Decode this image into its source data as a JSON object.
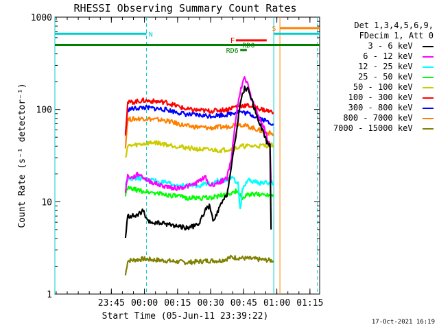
{
  "chart_data": {
    "type": "line",
    "title": "RHESSI Observing Summary Count Rates",
    "xlabel": "Start Time (05-Jun-11 23:39:22)",
    "ylabel": "Count Rate (s⁻¹ detector⁻¹)",
    "y_scale": "log",
    "ylim": [
      1,
      1000
    ],
    "y_ticks": [
      "1",
      "10",
      "100",
      "1000"
    ],
    "xlim_minutes": [
      -20,
      100
    ],
    "x_ticks": [
      {
        "label": "23:45",
        "value": 5.6
      },
      {
        "label": "00:00",
        "value": 20.6
      },
      {
        "label": "00:15",
        "value": 35.6
      },
      {
        "label": "00:30",
        "value": 50.6
      },
      {
        "label": "00:45",
        "value": 65.6
      },
      {
        "label": "01:00",
        "value": 80.6
      },
      {
        "label": "01:15",
        "value": 95.6
      }
    ],
    "legend_header": [
      "Det 1,3,4,5,6,9,",
      "FDecim 1, Att 0"
    ],
    "series": [
      {
        "name": "3 - 6 keV",
        "color": "#000000",
        "points": [
          [
            12,
            4
          ],
          [
            13,
            7
          ],
          [
            17,
            7
          ],
          [
            20,
            8
          ],
          [
            22,
            6
          ],
          [
            30,
            5.8
          ],
          [
            40,
            5.2
          ],
          [
            45,
            5.6
          ],
          [
            48,
            8
          ],
          [
            50,
            9
          ],
          [
            52,
            6
          ],
          [
            54,
            8
          ],
          [
            56,
            10
          ],
          [
            58,
            12
          ],
          [
            60,
            24
          ],
          [
            62,
            50
          ],
          [
            64,
            120
          ],
          [
            66,
            170
          ],
          [
            68,
            160
          ],
          [
            70,
            110
          ],
          [
            72,
            80
          ],
          [
            74,
            60
          ],
          [
            76,
            45
          ],
          [
            77.5,
            40
          ],
          [
            78,
            5
          ]
        ]
      },
      {
        "name": "6 - 12 keV",
        "color": "#ff00ff",
        "points": [
          [
            12,
            13
          ],
          [
            13,
            19
          ],
          [
            15,
            18
          ],
          [
            18,
            20
          ],
          [
            22,
            17
          ],
          [
            28,
            15
          ],
          [
            35,
            14
          ],
          [
            42,
            15
          ],
          [
            46,
            17
          ],
          [
            48,
            19
          ],
          [
            50,
            15
          ],
          [
            54,
            16
          ],
          [
            58,
            18
          ],
          [
            60,
            30
          ],
          [
            62,
            80
          ],
          [
            64,
            160
          ],
          [
            66,
            220
          ],
          [
            67,
            200
          ],
          [
            69,
            130
          ],
          [
            72,
            90
          ],
          [
            75,
            60
          ],
          [
            77.5,
            40
          ],
          [
            78,
            16
          ]
        ]
      },
      {
        "name": "12 - 25 keV",
        "color": "#00ffff",
        "points": [
          [
            12,
            15
          ],
          [
            13,
            18
          ],
          [
            18,
            18
          ],
          [
            25,
            17
          ],
          [
            35,
            15
          ],
          [
            45,
            15
          ],
          [
            55,
            17
          ],
          [
            60,
            18
          ],
          [
            63,
            16
          ],
          [
            64,
            8
          ],
          [
            65,
            14
          ],
          [
            68,
            17
          ],
          [
            72,
            16
          ],
          [
            78,
            16
          ],
          [
            79,
            16
          ]
        ]
      },
      {
        "name": "25 - 50 keV",
        "color": "#00ff00",
        "points": [
          [
            12,
            12
          ],
          [
            13,
            14
          ],
          [
            20,
            13
          ],
          [
            30,
            12
          ],
          [
            40,
            11
          ],
          [
            50,
            11
          ],
          [
            58,
            12
          ],
          [
            62,
            13
          ],
          [
            65,
            11
          ],
          [
            68,
            12
          ],
          [
            75,
            12
          ],
          [
            79,
            12
          ]
        ]
      },
      {
        "name": "50 - 100 keV",
        "color": "#cccc00",
        "points": [
          [
            12,
            30
          ],
          [
            13,
            40
          ],
          [
            25,
            44
          ],
          [
            35,
            40
          ],
          [
            45,
            37
          ],
          [
            55,
            36
          ],
          [
            62,
            38
          ],
          [
            65,
            40
          ],
          [
            70,
            40
          ],
          [
            79,
            41
          ]
        ]
      },
      {
        "name": "100 - 300 keV",
        "color": "#ff0000",
        "points": [
          [
            12,
            55
          ],
          [
            13,
            118
          ],
          [
            20,
            125
          ],
          [
            30,
            120
          ],
          [
            40,
            100
          ],
          [
            50,
            96
          ],
          [
            58,
            100
          ],
          [
            63,
            110
          ],
          [
            68,
            110
          ],
          [
            74,
            100
          ],
          [
            79,
            93
          ]
        ]
      },
      {
        "name": "300 - 800 keV",
        "color": "#0000ff",
        "points": [
          [
            12,
            55
          ],
          [
            13,
            100
          ],
          [
            20,
            105
          ],
          [
            30,
            100
          ],
          [
            40,
            88
          ],
          [
            50,
            85
          ],
          [
            58,
            88
          ],
          [
            63,
            95
          ],
          [
            68,
            90
          ],
          [
            74,
            78
          ],
          [
            79,
            70
          ]
        ]
      },
      {
        "name": "800 - 7000 keV",
        "color": "#ff8000",
        "points": [
          [
            12,
            40
          ],
          [
            13,
            78
          ],
          [
            20,
            80
          ],
          [
            30,
            76
          ],
          [
            40,
            66
          ],
          [
            50,
            63
          ],
          [
            58,
            65
          ],
          [
            63,
            70
          ],
          [
            68,
            65
          ],
          [
            74,
            58
          ],
          [
            79,
            54
          ]
        ]
      },
      {
        "name": "7000 - 15000 keV",
        "color": "#808000",
        "points": [
          [
            12,
            1.6
          ],
          [
            13,
            2.3
          ],
          [
            20,
            2.4
          ],
          [
            30,
            2.3
          ],
          [
            40,
            2.2
          ],
          [
            50,
            2.3
          ],
          [
            55,
            2.3
          ],
          [
            60,
            2.5
          ],
          [
            70,
            2.4
          ],
          [
            79,
            2.3
          ]
        ]
      }
    ],
    "annotations": [
      {
        "text": "N",
        "color": "#00cccc"
      },
      {
        "text": "S",
        "color": "#ff8000"
      },
      {
        "text": "F",
        "color": "#ff0000"
      },
      {
        "text": "RD0",
        "color": "#008000"
      },
      {
        "text": "RD6",
        "color": "#008000"
      }
    ],
    "footer_date": "17-Oct-2021 16:19"
  }
}
